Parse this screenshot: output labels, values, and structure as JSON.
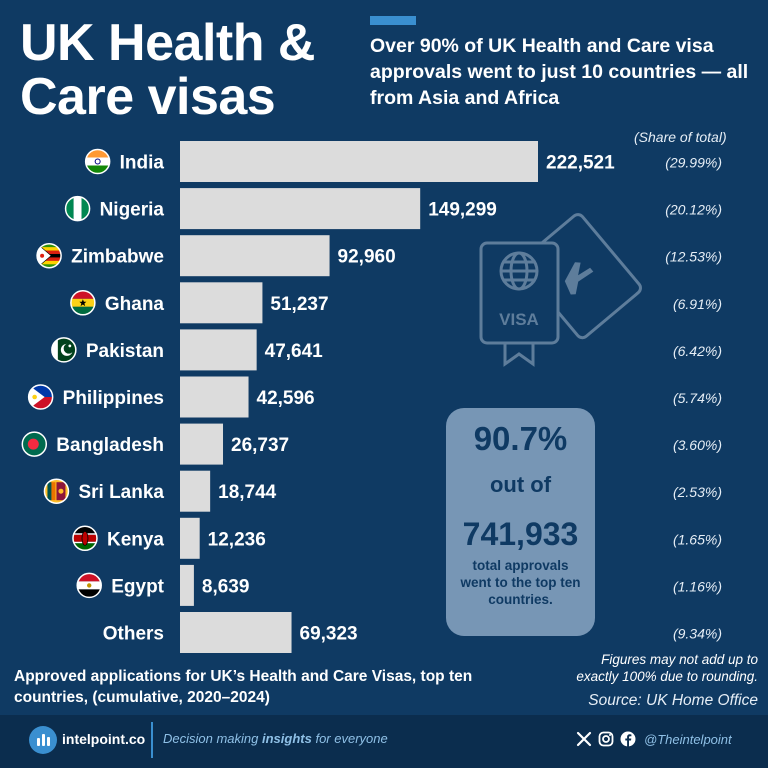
{
  "header": {
    "title": "UK Health & Care visas",
    "subtitle": "Over 90% of UK Health and Care visa approvals went to just 10 countries — all from Asia and Africa"
  },
  "share_header": "(Share of total)",
  "chart_data": {
    "type": "bar",
    "orientation": "horizontal",
    "categories": [
      "India",
      "Nigeria",
      "Zimbabwe",
      "Ghana",
      "Pakistan",
      "Philippines",
      "Bangladesh",
      "Sri Lanka",
      "Kenya",
      "Egypt",
      "Others"
    ],
    "values": [
      222521,
      149299,
      92960,
      51237,
      47641,
      42596,
      26737,
      18744,
      12236,
      8639,
      69323
    ],
    "value_labels": [
      "222,521",
      "149,299",
      "92,960",
      "51,237",
      "47,641",
      "42,596",
      "26,737",
      "18,744",
      "12,236",
      "8,639",
      "69,323"
    ],
    "shares": [
      "(29.99%)",
      "(20.12%)",
      "(12.53%)",
      "(6.91%)",
      "(6.42%)",
      "(5.74%)",
      "(3.60%)",
      "(2.53%)",
      "(1.65%)",
      "(1.16%)",
      "(9.34%)"
    ],
    "bar_color": "#dcdcdc",
    "grid": false
  },
  "callout": {
    "percent": "90.7%",
    "out_of": "out of",
    "total": "741,933",
    "description": "total approvals went to the top ten countries."
  },
  "caption": "Approved applications for UK’s Health and Care Visas, top ten countries, (cumulative, 2020–2024)",
  "note": "Figures may not add up to exactly 100% due to rounding.",
  "source": "Source: UK Home Office",
  "footer": {
    "brand": "intelpoint.co",
    "tagline_pre": "Decision making ",
    "tagline_bold": "insights",
    "tagline_post": " for everyone",
    "handle": "@Theintelpoint"
  },
  "icons": {
    "flags": [
      "india-flag-icon",
      "nigeria-flag-icon",
      "zimbabwe-flag-icon",
      "ghana-flag-icon",
      "pakistan-flag-icon",
      "philippines-flag-icon",
      "bangladesh-flag-icon",
      "sri-lanka-flag-icon",
      "kenya-flag-icon",
      "egypt-flag-icon"
    ],
    "decor": [
      "passport-visa-icon",
      "boarding-pass-icon"
    ],
    "social": [
      "x-icon",
      "instagram-icon",
      "facebook-icon"
    ]
  },
  "colors": {
    "background": "#0f3a63",
    "footer": "#0b2d4e",
    "accent": "#3a8fd0",
    "callout": "#7d9bba",
    "bars": "#dcdcdc"
  }
}
